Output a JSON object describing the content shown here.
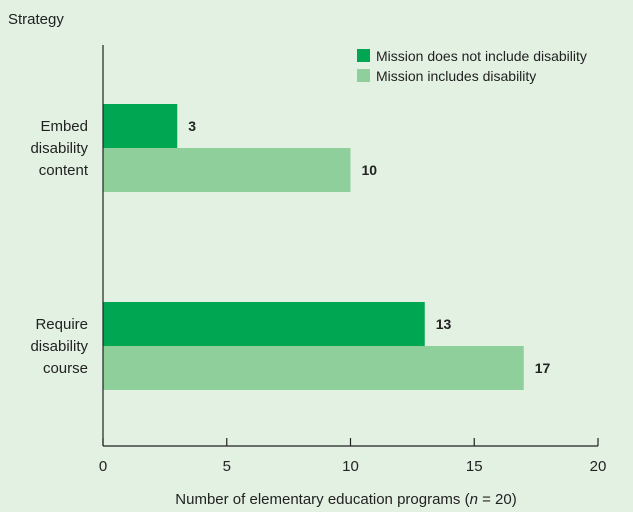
{
  "colors": {
    "background": "#e3f1e2",
    "axis": "#222222",
    "series_dark": "#00a651",
    "series_light": "#8ecf9b"
  },
  "chart_data": {
    "type": "bar",
    "orientation": "horizontal",
    "title": "",
    "ylabel": "Strategy",
    "xlabel_prefix": "Number of elementary education programs (",
    "xlabel_n": "n",
    "xlabel_suffix": " = 20)",
    "categories": [
      [
        "Embed",
        "disability",
        "content"
      ],
      [
        "Require",
        "disability",
        "course"
      ]
    ],
    "series": [
      {
        "name": "Mission does not include disability",
        "values": [
          3,
          13
        ]
      },
      {
        "name": "Mission includes disability",
        "values": [
          10,
          17
        ]
      }
    ],
    "xlim": [
      0,
      20
    ],
    "xticks": [
      0,
      5,
      10,
      15,
      20
    ],
    "grid": false,
    "legend_position": "top-right"
  }
}
